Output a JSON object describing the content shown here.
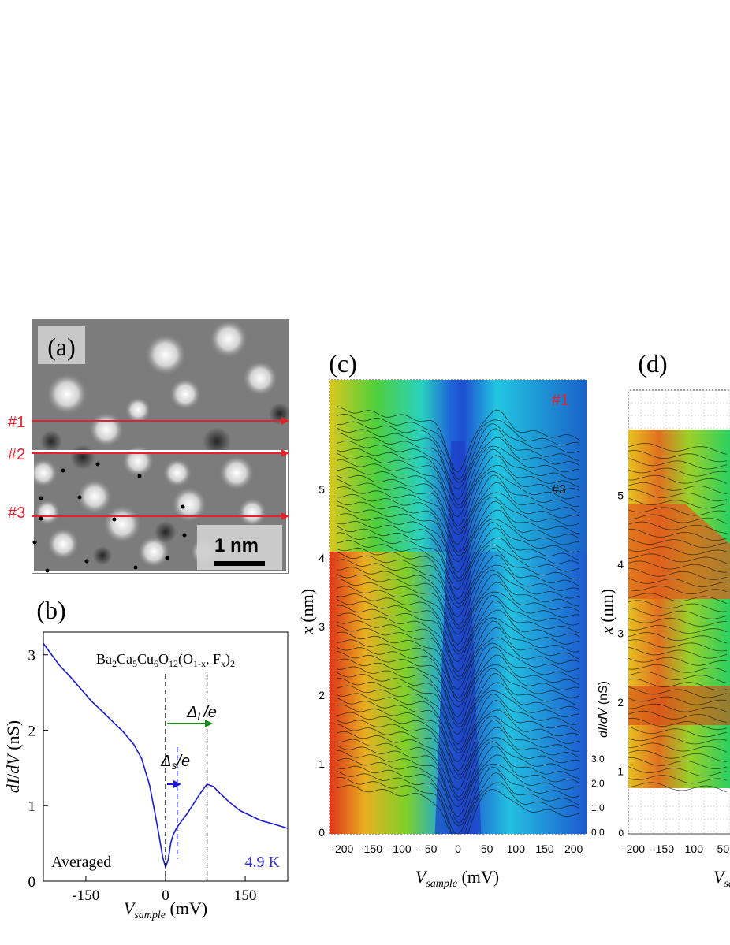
{
  "chart_data": [
    {
      "panel_label": "(a)",
      "type": "other",
      "description_kind": "stm_topograph",
      "line_labels": [
        "#1",
        "#2",
        "#3"
      ],
      "scale_bar_label": "1 nm",
      "colors": {
        "lines": "#e8202a",
        "labels": "#e8202a",
        "frame": "#ffffff",
        "scale_bar": "#000000"
      }
    },
    {
      "panel_label": "(b)",
      "type": "line",
      "compound": "Ba2Ca5Cu6O12(O1-x, Fx)2",
      "xlabel": "Vsample (mV)",
      "ylabel": "dI/dV (nS)",
      "xlim": [
        -230,
        230
      ],
      "ylim": [
        0,
        3.3
      ],
      "xticks": [
        -150,
        0,
        150
      ],
      "yticks": [
        0,
        1,
        2,
        3
      ],
      "note_left": "Averaged",
      "temperature": "4.9 K",
      "annotations": [
        "ΔL/e",
        "Δs/e"
      ],
      "gap_markers_mV": [
        0,
        22,
        78
      ],
      "series": [
        {
          "x": [
            -230,
            -200,
            -180,
            -160,
            -140,
            -120,
            -100,
            -80,
            -60,
            -45,
            -30,
            -20,
            -12,
            -5,
            0,
            5,
            10,
            15,
            20,
            25,
            30,
            40,
            50,
            60,
            70,
            78,
            90,
            100,
            120,
            140,
            160,
            180,
            200,
            230
          ],
          "y": [
            3.15,
            2.85,
            2.7,
            2.55,
            2.4,
            2.27,
            2.12,
            1.97,
            1.8,
            1.62,
            1.28,
            0.92,
            0.6,
            0.3,
            0.17,
            0.28,
            0.52,
            0.64,
            0.7,
            0.74,
            0.78,
            0.88,
            1.0,
            1.12,
            1.22,
            1.28,
            1.24,
            1.17,
            1.05,
            0.95,
            0.88,
            0.8,
            0.75,
            0.7
          ]
        }
      ],
      "colors": {
        "curve": "#1a1ad6",
        "arrow_large": "#1a8a1a",
        "arrow_small": "#1a1ad6",
        "temperature": "#3030e0"
      }
    },
    {
      "panel_label": "(c)",
      "type": "waterfall",
      "xlabel": "Vsample (mV)",
      "ylabel": "x (nm)",
      "zlabel": "dI/dV (nS)",
      "xlim": [
        -210,
        210
      ],
      "xticks": [
        -200,
        -150,
        -100,
        -50,
        0,
        50,
        100,
        150,
        200
      ],
      "ylim": [
        0,
        5.8
      ],
      "yticks": [
        0,
        1,
        2,
        3,
        4,
        5
      ],
      "zticks": [
        "0.0",
        "1.0",
        "2.0",
        "3.0"
      ],
      "line_labels": [
        "#1",
        "#3"
      ],
      "colors": {
        "label_1": "#e8202a",
        "label_3": "#111111"
      }
    },
    {
      "panel_label": "(d)",
      "type": "waterfall",
      "xlabel": "Vsample (mV)",
      "ylabel": "x (nm)",
      "xticks": [
        -200,
        -150,
        -100
      ],
      "xtick_partial": "-50",
      "yticks": [
        1,
        2,
        3,
        4,
        5
      ],
      "extra_tick": "0",
      "colors": {}
    }
  ]
}
